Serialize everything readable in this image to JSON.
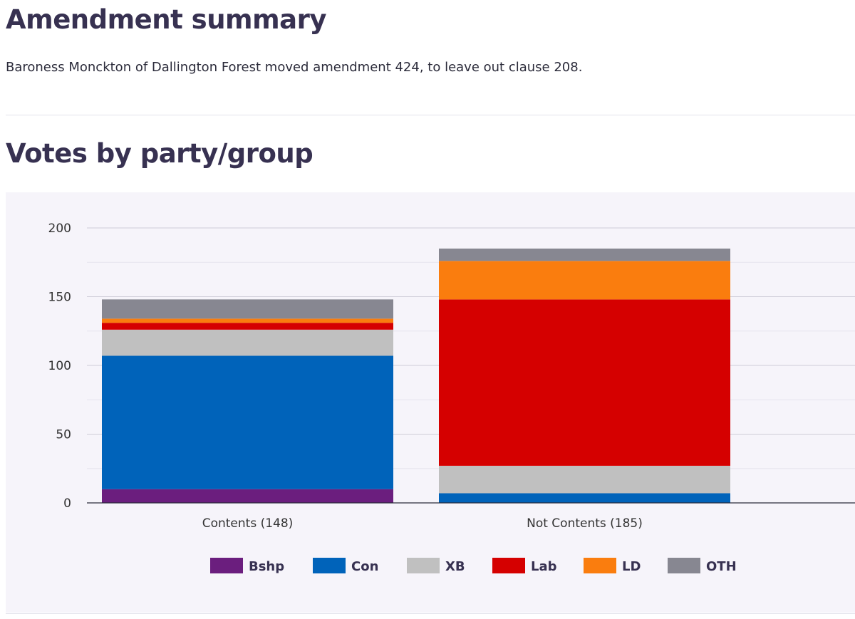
{
  "page": {
    "summary_heading": "Amendment summary",
    "summary_text": "Baroness Monckton of Dallington Forest moved amendment 424, to leave out clause 208.",
    "votes_heading": "Votes by party/group"
  },
  "chart_data": {
    "type": "bar",
    "stacked": true,
    "categories": [
      "Contents (148)",
      "Not Contents (185)"
    ],
    "series": [
      {
        "name": "Bshp",
        "color": "#6b1e7e",
        "values": [
          10,
          0
        ]
      },
      {
        "name": "Con",
        "color": "#0063ba",
        "values": [
          97,
          7
        ]
      },
      {
        "name": "XB",
        "color": "#c0c0c0",
        "values": [
          19,
          20
        ]
      },
      {
        "name": "Lab",
        "color": "#d50000",
        "values": [
          5,
          121
        ]
      },
      {
        "name": "LD",
        "color": "#fa7d0e",
        "values": [
          3,
          28
        ]
      },
      {
        "name": "OTH",
        "color": "#878791",
        "values": [
          14,
          9
        ]
      }
    ],
    "yticks": [
      "0",
      "50",
      "100",
      "150",
      "200"
    ],
    "ylim": [
      0,
      200
    ],
    "legend_position": "bottom",
    "grid": true
  }
}
